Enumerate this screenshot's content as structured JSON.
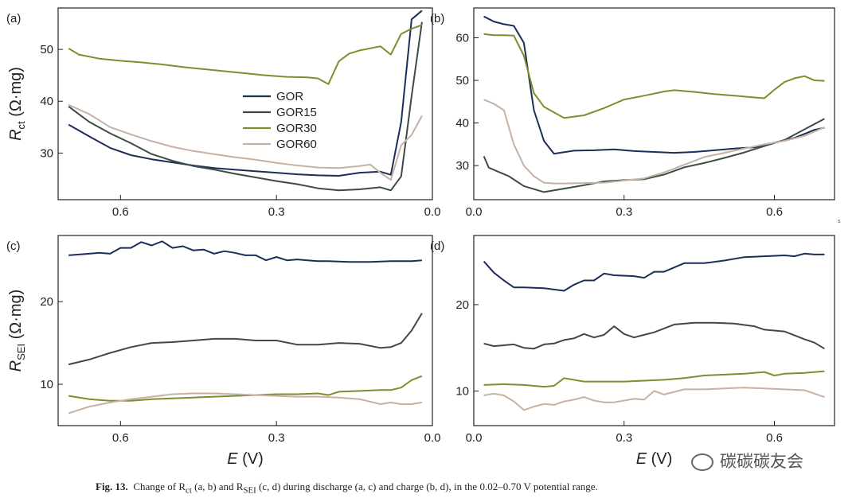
{
  "chart_data": [
    {
      "panel": "(a)",
      "type": "line",
      "x_reversed": true,
      "xlim": [
        0.72,
        0.0
      ],
      "ylim": [
        21,
        58
      ],
      "xticks": [
        0.6,
        0.3,
        0.0
      ],
      "xtick_labels": [
        "0.6",
        "0.3",
        "0.0"
      ],
      "yticks": [
        30,
        40,
        50
      ],
      "ytick_labels": [
        "30",
        "40",
        "50"
      ],
      "ylabel_main": "R",
      "ylabel_sub": "ct",
      "ylabel_unit": "(Ω·mg)",
      "legend": [
        "GOR",
        "GOR15",
        "GOR30",
        "GOR60"
      ],
      "series": [
        {
          "name": "GOR",
          "x": [
            0.7,
            0.66,
            0.62,
            0.58,
            0.54,
            0.5,
            0.46,
            0.42,
            0.38,
            0.34,
            0.3,
            0.26,
            0.22,
            0.18,
            0.14,
            0.1,
            0.08,
            0.06,
            0.04,
            0.02
          ],
          "y": [
            35.5,
            33.2,
            31.0,
            29.6,
            28.8,
            28.2,
            27.6,
            27.1,
            26.8,
            26.5,
            26.2,
            25.9,
            25.7,
            25.6,
            26.2,
            26.4,
            25.8,
            36.0,
            55.8,
            57.5
          ]
        },
        {
          "name": "GOR15",
          "x": [
            0.7,
            0.66,
            0.62,
            0.58,
            0.54,
            0.5,
            0.46,
            0.42,
            0.38,
            0.34,
            0.3,
            0.26,
            0.22,
            0.18,
            0.14,
            0.1,
            0.08,
            0.06,
            0.04,
            0.02
          ],
          "y": [
            39.0,
            36.0,
            33.8,
            31.9,
            29.8,
            28.5,
            27.5,
            26.8,
            26.0,
            25.3,
            24.6,
            24.0,
            23.2,
            22.8,
            23.0,
            23.4,
            22.8,
            25.5,
            41.0,
            55.3
          ]
        },
        {
          "name": "GOR30",
          "x": [
            0.7,
            0.68,
            0.64,
            0.6,
            0.56,
            0.52,
            0.48,
            0.44,
            0.4,
            0.36,
            0.32,
            0.28,
            0.24,
            0.22,
            0.2,
            0.18,
            0.16,
            0.14,
            0.12,
            0.1,
            0.08,
            0.06,
            0.04,
            0.02
          ],
          "y": [
            50.2,
            49.0,
            48.2,
            47.8,
            47.5,
            47.1,
            46.6,
            46.2,
            45.8,
            45.4,
            45.0,
            44.7,
            44.6,
            44.4,
            43.3,
            47.7,
            49.2,
            49.8,
            50.2,
            50.6,
            49.0,
            53.0,
            54.0,
            54.7
          ]
        },
        {
          "name": "GOR60",
          "x": [
            0.7,
            0.66,
            0.62,
            0.58,
            0.54,
            0.5,
            0.46,
            0.42,
            0.38,
            0.34,
            0.3,
            0.26,
            0.22,
            0.18,
            0.14,
            0.12,
            0.1,
            0.08,
            0.06,
            0.04,
            0.02
          ],
          "y": [
            39.3,
            37.5,
            35.0,
            33.6,
            32.3,
            31.2,
            30.4,
            29.8,
            29.2,
            28.7,
            28.1,
            27.6,
            27.2,
            27.1,
            27.5,
            27.8,
            26.2,
            24.8,
            31.5,
            33.5,
            37.2
          ]
        }
      ]
    },
    {
      "panel": "(b)",
      "type": "line",
      "x_reversed": false,
      "xlim": [
        0.0,
        0.72
      ],
      "ylim": [
        22,
        67
      ],
      "xticks": [
        0.0,
        0.3,
        0.6
      ],
      "xtick_labels": [
        "0.0",
        "0.3",
        "0.6"
      ],
      "yticks": [
        30,
        40,
        50,
        60
      ],
      "ytick_labels": [
        "30",
        "40",
        "50",
        "60"
      ],
      "ylabel_main": "",
      "ylabel_sub": "",
      "ylabel_unit": "",
      "series": [
        {
          "name": "GOR",
          "x": [
            0.02,
            0.04,
            0.06,
            0.08,
            0.1,
            0.12,
            0.14,
            0.16,
            0.2,
            0.24,
            0.28,
            0.32,
            0.36,
            0.4,
            0.44,
            0.48,
            0.52,
            0.56,
            0.6,
            0.64,
            0.68,
            0.7
          ],
          "y": [
            65.0,
            63.8,
            63.2,
            62.8,
            58.8,
            43.0,
            35.8,
            32.8,
            33.5,
            33.6,
            33.8,
            33.4,
            33.2,
            33.0,
            33.2,
            33.6,
            34.0,
            34.3,
            35.4,
            36.5,
            38.4,
            38.9
          ]
        },
        {
          "name": "GOR15",
          "x": [
            0.02,
            0.03,
            0.05,
            0.07,
            0.1,
            0.14,
            0.18,
            0.22,
            0.26,
            0.3,
            0.34,
            0.38,
            0.42,
            0.46,
            0.5,
            0.54,
            0.58,
            0.62,
            0.66,
            0.7
          ],
          "y": [
            32.2,
            29.5,
            28.5,
            27.5,
            25.2,
            23.8,
            24.6,
            25.4,
            26.3,
            26.6,
            26.8,
            27.9,
            29.6,
            30.6,
            31.8,
            33.1,
            34.6,
            36.0,
            38.5,
            41.0
          ]
        },
        {
          "name": "GOR30",
          "x": [
            0.02,
            0.04,
            0.06,
            0.08,
            0.1,
            0.12,
            0.14,
            0.16,
            0.18,
            0.22,
            0.26,
            0.3,
            0.34,
            0.38,
            0.4,
            0.44,
            0.48,
            0.52,
            0.56,
            0.58,
            0.6,
            0.62,
            0.64,
            0.66,
            0.68,
            0.7
          ],
          "y": [
            60.9,
            60.6,
            60.6,
            60.5,
            55.8,
            47.0,
            43.8,
            42.5,
            41.2,
            41.8,
            43.5,
            45.5,
            46.4,
            47.4,
            47.7,
            47.3,
            46.8,
            46.4,
            46.0,
            45.8,
            47.8,
            49.6,
            50.5,
            51.0,
            50.0,
            49.9
          ]
        },
        {
          "name": "GOR60",
          "x": [
            0.02,
            0.04,
            0.06,
            0.08,
            0.1,
            0.12,
            0.14,
            0.16,
            0.18,
            0.22,
            0.26,
            0.3,
            0.34,
            0.38,
            0.42,
            0.46,
            0.5,
            0.54,
            0.58,
            0.62,
            0.66,
            0.7
          ],
          "y": [
            45.5,
            44.5,
            43.0,
            35.0,
            30.0,
            27.5,
            26.0,
            25.8,
            25.8,
            25.9,
            26.0,
            26.5,
            27.0,
            28.4,
            30.2,
            32.0,
            33.0,
            34.0,
            35.0,
            35.8,
            37.0,
            39.0
          ]
        }
      ]
    },
    {
      "panel": "(c)",
      "type": "line",
      "x_reversed": true,
      "xlim": [
        0.72,
        0.0
      ],
      "ylim": [
        5,
        28
      ],
      "xticks": [
        0.6,
        0.3,
        0.0
      ],
      "xtick_labels": [
        "0.6",
        "0.3",
        "0.0"
      ],
      "yticks": [
        10,
        20
      ],
      "ytick_labels": [
        "10",
        "20"
      ],
      "ylabel_main": "R",
      "ylabel_sub": "SEI",
      "ylabel_unit": "(Ω·mg)",
      "xlabel_main": "E",
      "xlabel_unit": "(V)",
      "series": [
        {
          "name": "GOR",
          "x": [
            0.7,
            0.66,
            0.64,
            0.62,
            0.6,
            0.58,
            0.56,
            0.54,
            0.52,
            0.5,
            0.48,
            0.46,
            0.44,
            0.42,
            0.4,
            0.38,
            0.36,
            0.34,
            0.32,
            0.3,
            0.28,
            0.26,
            0.24,
            0.22,
            0.2,
            0.16,
            0.12,
            0.08,
            0.04,
            0.02
          ],
          "y": [
            25.6,
            25.8,
            25.9,
            25.8,
            26.5,
            26.5,
            27.2,
            26.8,
            27.3,
            26.5,
            26.7,
            26.2,
            26.3,
            25.8,
            26.1,
            25.9,
            25.6,
            25.6,
            25.0,
            25.4,
            25.0,
            25.1,
            25.0,
            24.9,
            24.9,
            24.8,
            24.8,
            24.9,
            24.9,
            25.0
          ]
        },
        {
          "name": "GOR15",
          "x": [
            0.7,
            0.66,
            0.62,
            0.58,
            0.54,
            0.5,
            0.46,
            0.42,
            0.38,
            0.34,
            0.3,
            0.26,
            0.22,
            0.18,
            0.14,
            0.1,
            0.08,
            0.06,
            0.04,
            0.02
          ],
          "y": [
            12.4,
            13.0,
            13.8,
            14.5,
            15.0,
            15.1,
            15.3,
            15.5,
            15.5,
            15.3,
            15.3,
            14.8,
            14.8,
            15.0,
            14.9,
            14.4,
            14.5,
            15.0,
            16.5,
            18.6
          ]
        },
        {
          "name": "GOR30",
          "x": [
            0.7,
            0.66,
            0.62,
            0.58,
            0.54,
            0.5,
            0.46,
            0.42,
            0.38,
            0.34,
            0.3,
            0.26,
            0.22,
            0.2,
            0.18,
            0.14,
            0.1,
            0.08,
            0.06,
            0.04,
            0.02
          ],
          "y": [
            8.6,
            8.2,
            8.0,
            8.0,
            8.2,
            8.3,
            8.4,
            8.5,
            8.6,
            8.7,
            8.8,
            8.8,
            8.9,
            8.7,
            9.1,
            9.2,
            9.3,
            9.3,
            9.6,
            10.5,
            11.0
          ]
        },
        {
          "name": "GOR60",
          "x": [
            0.7,
            0.66,
            0.62,
            0.58,
            0.54,
            0.5,
            0.46,
            0.42,
            0.38,
            0.34,
            0.3,
            0.26,
            0.22,
            0.18,
            0.14,
            0.1,
            0.08,
            0.06,
            0.04,
            0.02
          ],
          "y": [
            6.5,
            7.3,
            7.8,
            8.2,
            8.5,
            8.8,
            8.9,
            8.9,
            8.8,
            8.7,
            8.6,
            8.5,
            8.5,
            8.4,
            8.2,
            7.6,
            7.8,
            7.6,
            7.6,
            7.8
          ]
        }
      ]
    },
    {
      "panel": "(d)",
      "type": "line",
      "x_reversed": false,
      "xlim": [
        0.0,
        0.72
      ],
      "ylim": [
        6,
        28
      ],
      "xticks": [
        0.0,
        0.3,
        0.6
      ],
      "xtick_labels": [
        "0.0",
        "0.3",
        "0.6"
      ],
      "yticks": [
        10,
        20
      ],
      "ytick_labels": [
        "10",
        "20"
      ],
      "ylabel_main": "",
      "ylabel_sub": "",
      "ylabel_unit": "",
      "xlabel_main": "E",
      "xlabel_unit": "(V)",
      "series": [
        {
          "name": "GOR",
          "x": [
            0.02,
            0.04,
            0.06,
            0.08,
            0.1,
            0.14,
            0.18,
            0.2,
            0.22,
            0.24,
            0.26,
            0.28,
            0.32,
            0.34,
            0.36,
            0.38,
            0.42,
            0.46,
            0.5,
            0.54,
            0.58,
            0.62,
            0.64,
            0.66,
            0.68,
            0.7
          ],
          "y": [
            25.0,
            23.7,
            22.8,
            22.0,
            22.0,
            21.9,
            21.6,
            22.3,
            22.8,
            22.8,
            23.6,
            23.4,
            23.3,
            23.1,
            23.8,
            23.8,
            24.8,
            24.8,
            25.1,
            25.5,
            25.6,
            25.7,
            25.6,
            25.9,
            25.8,
            25.8
          ]
        },
        {
          "name": "GOR15",
          "x": [
            0.02,
            0.04,
            0.06,
            0.08,
            0.1,
            0.12,
            0.14,
            0.16,
            0.18,
            0.2,
            0.22,
            0.24,
            0.26,
            0.28,
            0.3,
            0.32,
            0.34,
            0.36,
            0.4,
            0.44,
            0.48,
            0.52,
            0.56,
            0.58,
            0.62,
            0.66,
            0.68,
            0.7
          ],
          "y": [
            15.5,
            15.2,
            15.3,
            15.4,
            15.0,
            14.9,
            15.4,
            15.5,
            15.9,
            16.1,
            16.6,
            16.2,
            16.5,
            17.5,
            16.6,
            16.2,
            16.5,
            16.8,
            17.7,
            17.9,
            17.9,
            17.8,
            17.5,
            17.1,
            16.9,
            16.0,
            15.6,
            14.9
          ]
        },
        {
          "name": "GOR30",
          "x": [
            0.02,
            0.06,
            0.1,
            0.14,
            0.16,
            0.18,
            0.22,
            0.26,
            0.3,
            0.34,
            0.38,
            0.42,
            0.46,
            0.5,
            0.54,
            0.58,
            0.6,
            0.62,
            0.66,
            0.7
          ],
          "y": [
            10.7,
            10.8,
            10.7,
            10.5,
            10.6,
            11.5,
            11.1,
            11.1,
            11.1,
            11.2,
            11.3,
            11.5,
            11.8,
            11.9,
            12.0,
            12.2,
            11.8,
            12.0,
            12.1,
            12.3
          ]
        },
        {
          "name": "GOR60",
          "x": [
            0.02,
            0.04,
            0.06,
            0.08,
            0.1,
            0.12,
            0.14,
            0.16,
            0.18,
            0.2,
            0.22,
            0.24,
            0.26,
            0.28,
            0.3,
            0.32,
            0.34,
            0.36,
            0.38,
            0.42,
            0.46,
            0.5,
            0.54,
            0.58,
            0.62,
            0.66,
            0.7
          ],
          "y": [
            9.5,
            9.7,
            9.5,
            8.8,
            7.8,
            8.2,
            8.5,
            8.4,
            8.8,
            9.0,
            9.3,
            8.9,
            8.7,
            8.7,
            8.9,
            9.1,
            9.0,
            10.0,
            9.6,
            10.2,
            10.2,
            10.3,
            10.4,
            10.3,
            10.2,
            10.1,
            9.3
          ]
        }
      ]
    }
  ],
  "colors": {
    "GOR": "#1c2d5a",
    "GOR15": "#3d4b47",
    "GOR30": "#7d8f2c",
    "GOR60": "#c6b2a5"
  },
  "caption": {
    "label": "Fig. 13.",
    "text": "Change of R",
    "sub1": "ct",
    "text2": " (a, b) and R",
    "sub2": "SEI",
    "text3": " (c, d) during discharge (a, c) and charge (b, d), in the 0.02–0.70 V potential range."
  },
  "watermark": "碳碳碳友会",
  "stray_mark": "s"
}
